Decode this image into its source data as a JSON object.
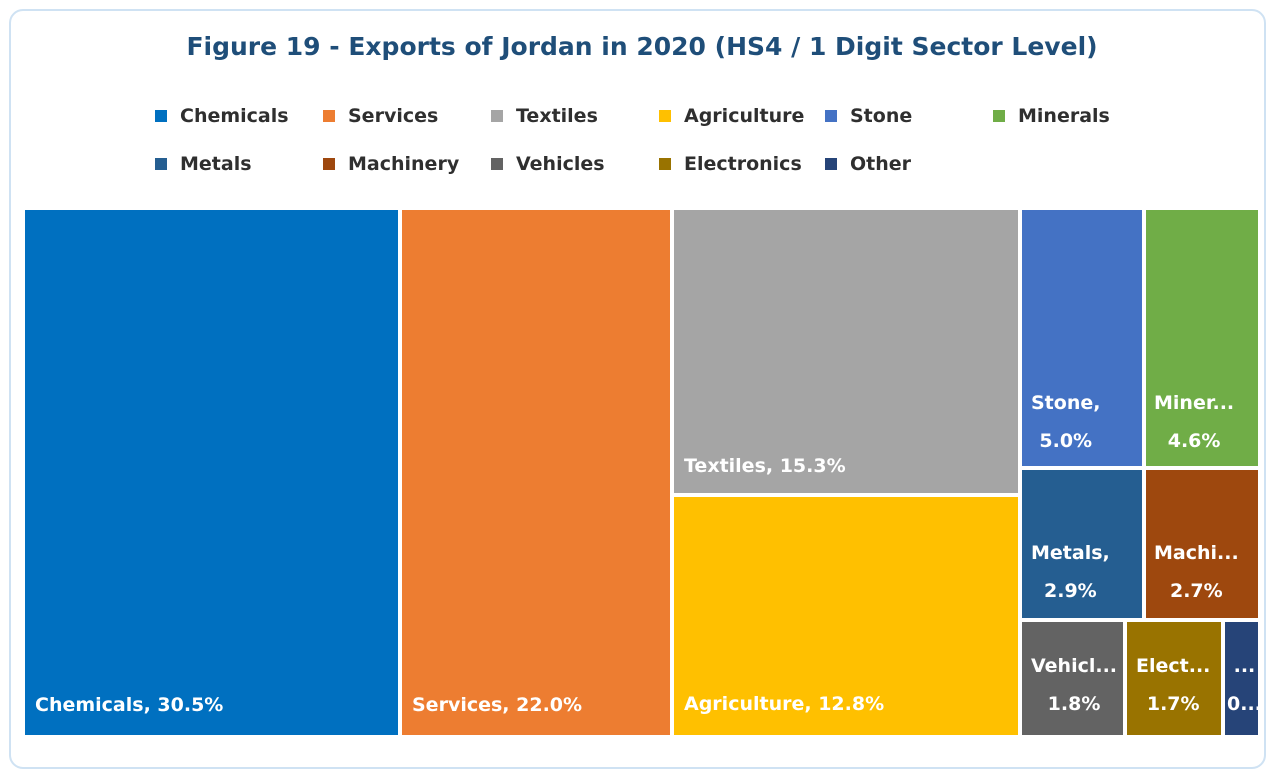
{
  "chart_data": {
    "type": "treemap",
    "title": "Figure 19 - Exports of Jordan in 2020 (HS4 / 1 Digit Sector Level)",
    "legend_position": "top",
    "series": [
      {
        "name": "Chemicals",
        "value": 30.5,
        "color": "#0070c0",
        "label_lines": [
          "Chemicals, 30.5%"
        ]
      },
      {
        "name": "Services",
        "value": 22.0,
        "color": "#ed7d31",
        "label_lines": [
          "Services, 22.0%"
        ]
      },
      {
        "name": "Textiles",
        "value": 15.3,
        "color": "#a5a5a5",
        "label_lines": [
          "Textiles, 15.3%"
        ]
      },
      {
        "name": "Agriculture",
        "value": 12.8,
        "color": "#ffc000",
        "label_lines": [
          "Agriculture, 12.8%"
        ]
      },
      {
        "name": "Stone",
        "value": 5.0,
        "color": "#4472c4",
        "label_lines": [
          "Stone,",
          "5.0%"
        ]
      },
      {
        "name": "Minerals",
        "value": 4.6,
        "color": "#70ad47",
        "label_lines": [
          "Miner...",
          "4.6%"
        ]
      },
      {
        "name": "Metals",
        "value": 2.9,
        "color": "#255e91",
        "label_lines": [
          "Metals,",
          "2.9%"
        ]
      },
      {
        "name": "Machinery",
        "value": 2.7,
        "color": "#9e480e",
        "label_lines": [
          "Machi...",
          "2.7%"
        ]
      },
      {
        "name": "Vehicles",
        "value": 1.8,
        "color": "#636363",
        "label_lines": [
          "Vehicl...",
          "1.8%"
        ]
      },
      {
        "name": "Electronics",
        "value": 1.7,
        "color": "#997300",
        "label_lines": [
          "Elect...",
          "1.7%"
        ]
      },
      {
        "name": "Other",
        "value": 0.7,
        "color": "#264478",
        "label_lines": [
          "...",
          "0..."
        ]
      }
    ]
  }
}
